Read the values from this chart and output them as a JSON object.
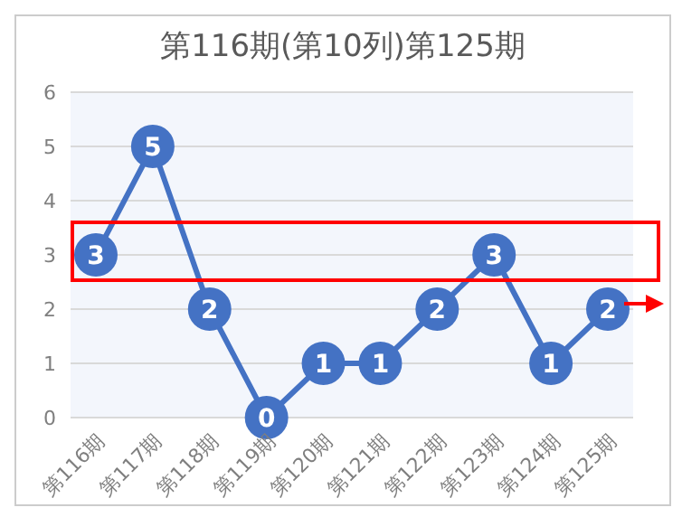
{
  "chart_data": {
    "type": "line",
    "title": "第116期(第10列)第125期",
    "categories": [
      "第116期",
      "第117期",
      "第118期",
      "第119期",
      "第120期",
      "第121期",
      "第122期",
      "第123期",
      "第124期",
      "第125期"
    ],
    "values": [
      3,
      5,
      2,
      0,
      1,
      1,
      2,
      3,
      1,
      2
    ],
    "color": "#4472c4",
    "marker": "circle",
    "data_labels": true,
    "ylim": [
      0,
      6
    ],
    "yticks": [
      0,
      1,
      2,
      3,
      4,
      5,
      6
    ],
    "grid": "y"
  }
}
